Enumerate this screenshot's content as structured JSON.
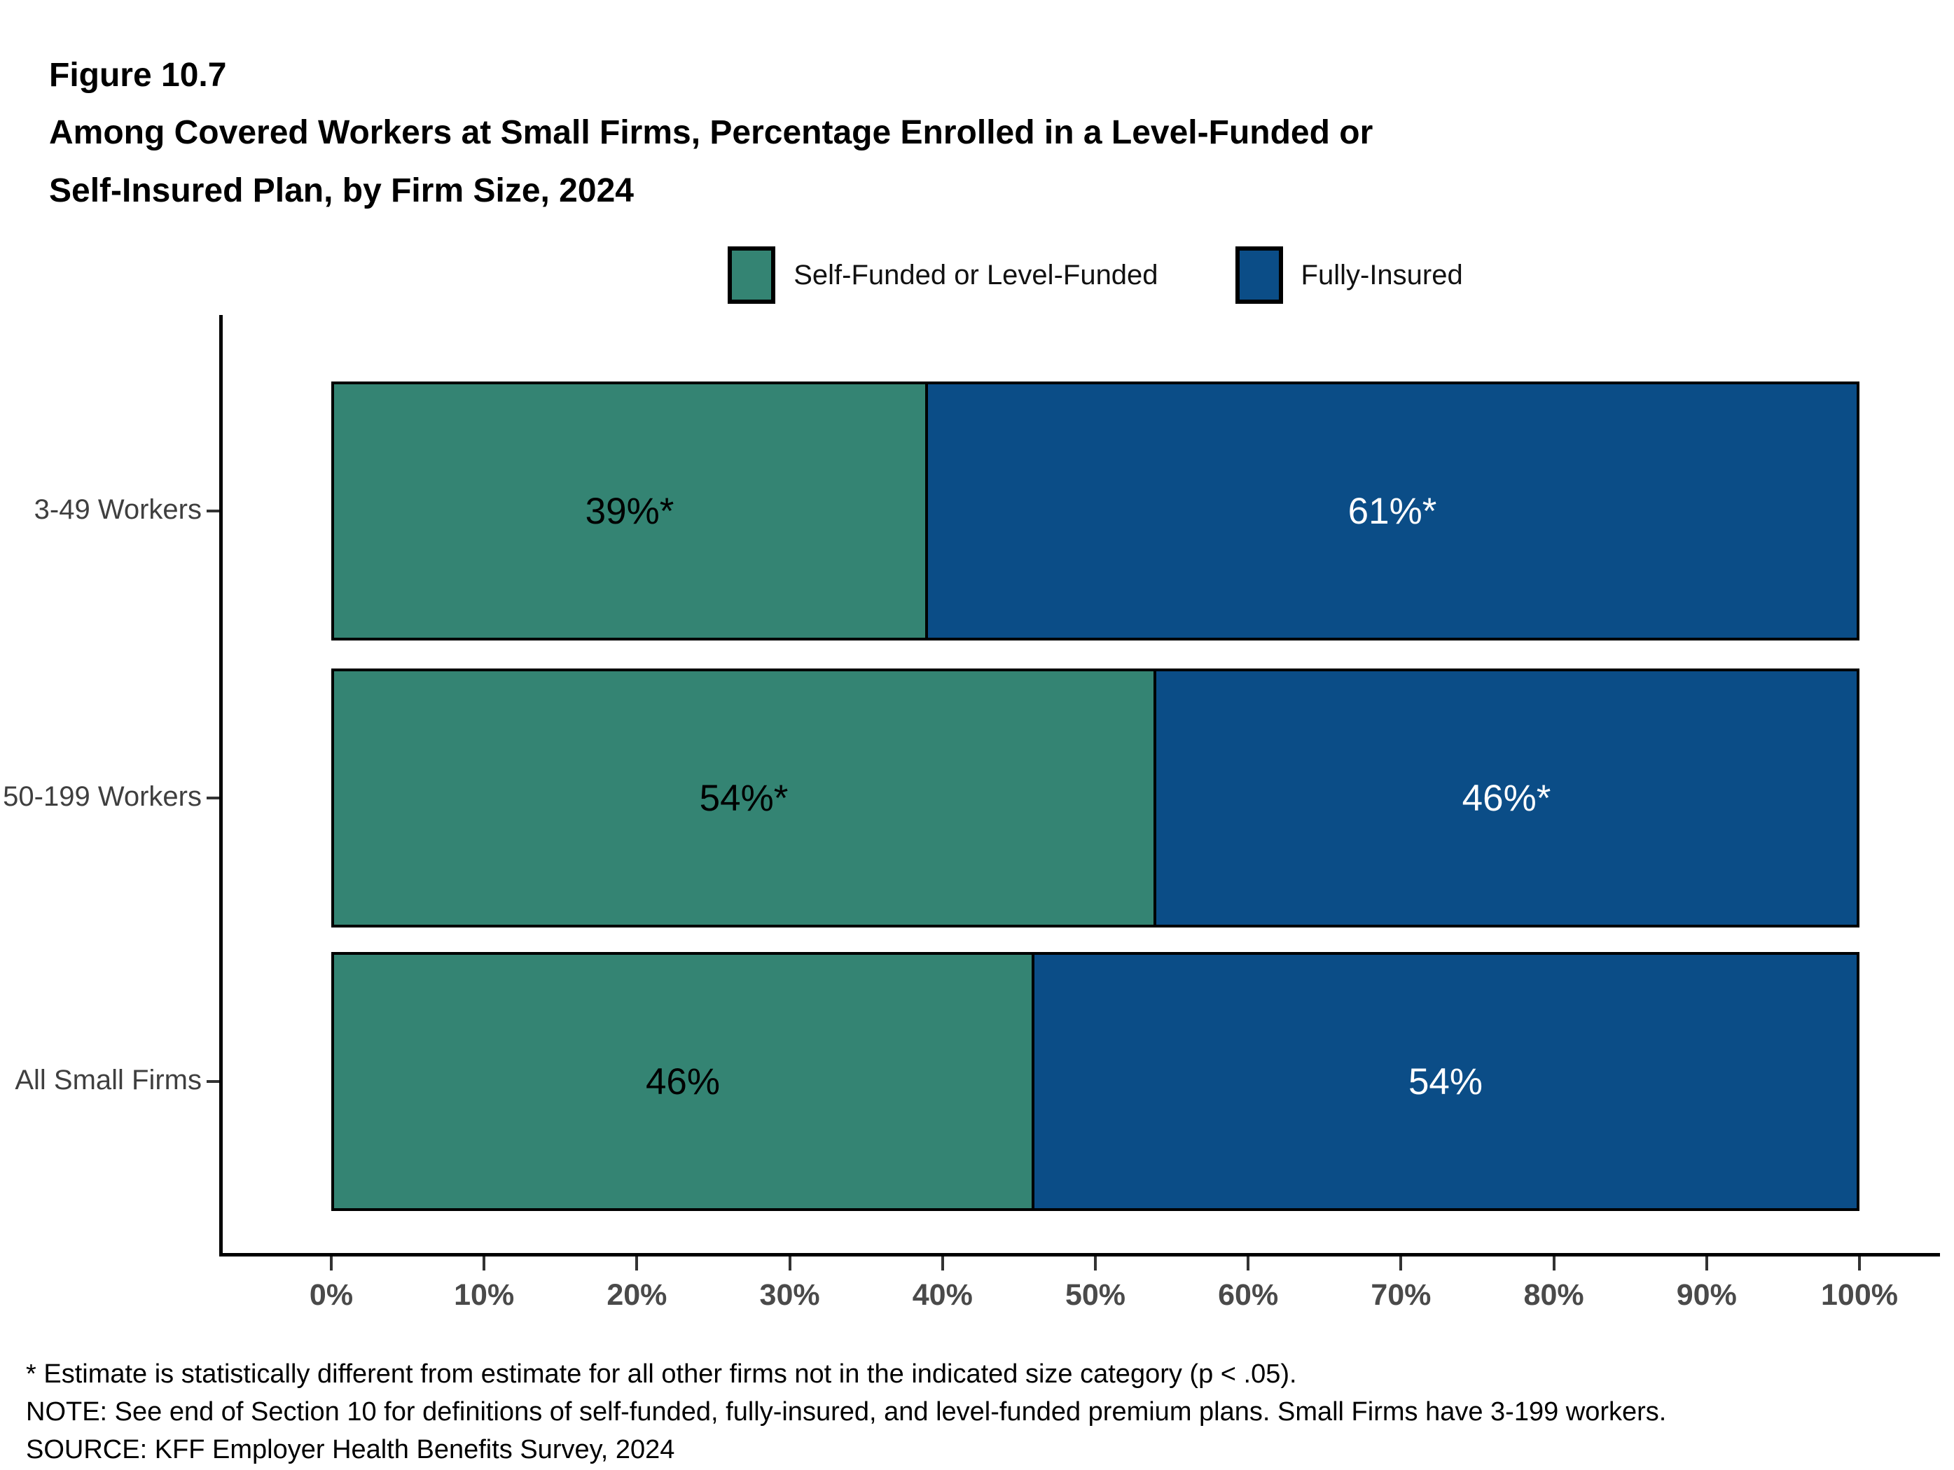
{
  "header": {
    "figure_label": "Figure 10.7",
    "title_lines": [
      "Among Covered Workers at Small Firms, Percentage Enrolled in a Level-Funded or",
      "Self-Insured Plan, by Firm Size, 2024"
    ]
  },
  "legend": [
    {
      "label": "Self-Funded or Level-Funded",
      "color": "#348473"
    },
    {
      "label": "Fully-Insured",
      "color": "#0B4D87"
    }
  ],
  "chart_data": {
    "type": "bar",
    "orientation": "horizontal",
    "stacked": true,
    "title": "Among Covered Workers at Small Firms, Percentage Enrolled in a Level-Funded or Self-Insured Plan, by Firm Size, 2024",
    "categories": [
      "3-49 Workers",
      "50-199 Workers",
      "All Small Firms"
    ],
    "series": [
      {
        "name": "Self-Funded or Level-Funded",
        "color": "#348473",
        "label_color": "#000000",
        "values": [
          39,
          54,
          46
        ],
        "labels": [
          "39%*",
          "54%*",
          "46%"
        ]
      },
      {
        "name": "Fully-Insured",
        "color": "#0B4D87",
        "label_color": "#ffffff",
        "values": [
          61,
          46,
          54
        ],
        "labels": [
          "61%*",
          "46%*",
          "54%"
        ]
      }
    ],
    "x_axis": {
      "min": 0,
      "max": 100,
      "tick_labels": [
        "0%",
        "10%",
        "20%",
        "30%",
        "40%",
        "50%",
        "60%",
        "70%",
        "80%",
        "90%",
        "100%"
      ]
    },
    "grid": false,
    "legend_position": "top"
  },
  "footnotes": [
    "* Estimate is statistically different from estimate for all other firms not in the indicated size category (p < .05).",
    "NOTE: See end of Section 10 for definitions of self-funded, fully-insured, and level-funded premium plans. Small Firms have 3-199 workers.",
    "SOURCE: KFF Employer Health Benefits Survey, 2024"
  ]
}
